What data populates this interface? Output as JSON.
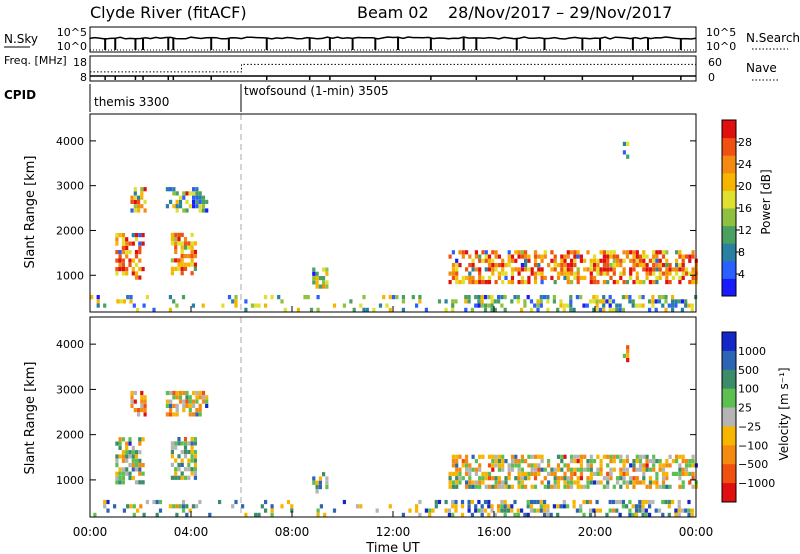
{
  "header": {
    "station": "Clyde River (fitACF)",
    "beam": "Beam 02",
    "dates": "28/Nov/2017 – 29/Nov/2017"
  },
  "nsky": {
    "label": "N.Sky",
    "ticks_left": [
      "10^5",
      "10^0"
    ],
    "ticks_right": [
      "10^5",
      "10^0"
    ],
    "right_label": "N.Search"
  },
  "freq": {
    "label": "Freq. [MHz]",
    "ticks_left": [
      "18",
      "8"
    ],
    "ticks_right": [
      "60",
      "0"
    ],
    "right_label": "Nave",
    "level_mhz": 10,
    "nave_low": 22,
    "nave_high": 40,
    "nave_step_hour": 6
  },
  "cpid": {
    "label": "CPID",
    "programs": [
      {
        "name": "themis 3300",
        "start_hour": 0
      },
      {
        "name": "twofsound (1-min) 3505",
        "start_hour": 6
      }
    ]
  },
  "chart_data": [
    {
      "type": "heatmap",
      "name": "power",
      "xlabel": "",
      "ylabel": "Slant Range [km]",
      "x_range_hours": [
        0,
        24
      ],
      "ylim": [
        180,
        4600
      ],
      "yticks": [
        1000,
        2000,
        3000,
        4000
      ],
      "colorbar": {
        "label": "Power [dB]",
        "range": [
          0,
          32
        ],
        "ticks": [
          4,
          8,
          12,
          16,
          20,
          24,
          28
        ],
        "colors": [
          "#1a1aff",
          "#2a60ff",
          "#2a80a0",
          "#4aa060",
          "#90c040",
          "#e0e030",
          "#f7b500",
          "#f58a10",
          "#f05010",
          "#e01010"
        ]
      },
      "echo_regions": [
        {
          "h0": 1.0,
          "h1": 2.1,
          "r0": 900,
          "r1": 1900,
          "level": 0.8
        },
        {
          "h0": 1.6,
          "h1": 2.2,
          "r0": 2400,
          "r1": 2900,
          "level": 0.75
        },
        {
          "h0": 3.2,
          "h1": 4.2,
          "r0": 1000,
          "r1": 1900,
          "level": 0.72
        },
        {
          "h0": 3.0,
          "h1": 4.6,
          "r0": 2400,
          "r1": 2900,
          "level": 0.3
        },
        {
          "h0": 8.8,
          "h1": 9.4,
          "r0": 700,
          "r1": 1100,
          "level": 0.55
        },
        {
          "h0": 14.2,
          "h1": 24.0,
          "r0": 800,
          "r1": 1500,
          "level": 0.8
        },
        {
          "h0": 21.1,
          "h1": 21.3,
          "r0": 3600,
          "r1": 3900,
          "level": 0.45
        }
      ],
      "near_range_band": {
        "h0": 0,
        "h1": 24,
        "r0": 180,
        "r1": 550
      }
    },
    {
      "type": "heatmap",
      "name": "velocity",
      "xlabel": "Time UT",
      "ylabel": "Slant Range [km]",
      "x_range_hours": [
        0,
        24
      ],
      "ylim": [
        180,
        4600
      ],
      "yticks": [
        1000,
        2000,
        3000,
        4000
      ],
      "xticks": [
        "00:00",
        "04:00",
        "08:00",
        "12:00",
        "16:00",
        "20:00",
        "00:00"
      ],
      "colorbar": {
        "label": "Velocity [m s⁻¹]",
        "ticks": [
          "1000",
          "500",
          "100",
          "25",
          "−25",
          "−100",
          "−500",
          "−1000"
        ],
        "colors": [
          "#1428c8",
          "#2e64b4",
          "#3c8c6c",
          "#5cc050",
          "#b4b4b4",
          "#f7b500",
          "#f58a10",
          "#f05010",
          "#e01010"
        ]
      },
      "echo_regions": [
        {
          "h0": 1.0,
          "h1": 2.1,
          "r0": 900,
          "r1": 1900,
          "level": 0.45
        },
        {
          "h0": 1.6,
          "h1": 2.2,
          "r0": 2400,
          "r1": 2900,
          "level": 0.7
        },
        {
          "h0": 3.2,
          "h1": 4.2,
          "r0": 1000,
          "r1": 1900,
          "level": 0.4
        },
        {
          "h0": 3.0,
          "h1": 4.6,
          "r0": 2400,
          "r1": 2900,
          "level": 0.6
        },
        {
          "h0": 8.8,
          "h1": 9.4,
          "r0": 700,
          "r1": 1100,
          "level": 0.35
        },
        {
          "h0": 14.2,
          "h1": 24.0,
          "r0": 800,
          "r1": 1500,
          "level": 0.55
        },
        {
          "h0": 21.1,
          "h1": 21.3,
          "r0": 3600,
          "r1": 3900,
          "level": 0.8
        }
      ],
      "near_range_band": {
        "h0": 0,
        "h1": 24,
        "r0": 180,
        "r1": 550
      }
    }
  ]
}
